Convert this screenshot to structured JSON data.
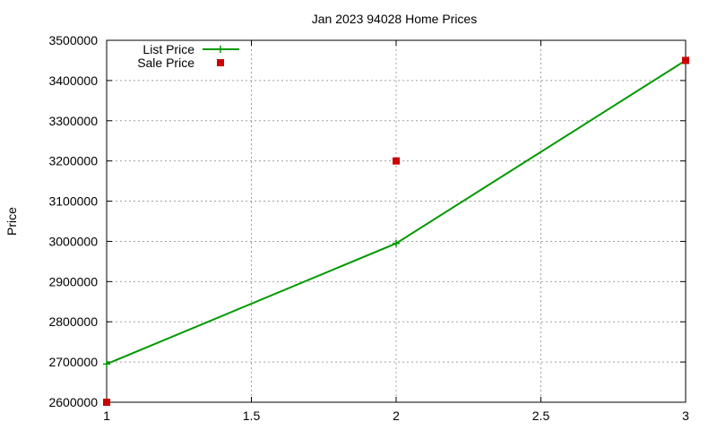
{
  "chart_data": {
    "type": "line",
    "title": "Jan 2023 94028 Home Prices",
    "xlabel": "",
    "ylabel": "Price",
    "xlim": [
      1,
      3
    ],
    "ylim": [
      2600000,
      3500000
    ],
    "x_ticks": [
      "1",
      "1.5",
      "2",
      "2.5",
      "3"
    ],
    "y_ticks": [
      "2600000",
      "2700000",
      "2800000",
      "2900000",
      "3000000",
      "3100000",
      "3200000",
      "3300000",
      "3400000",
      "3500000"
    ],
    "grid": true,
    "legend_position": "top-left",
    "series": [
      {
        "name": "List Price",
        "style": "line-with-plus-markers",
        "color": "#009900",
        "x": [
          1,
          2,
          3
        ],
        "y": [
          2695000,
          2995000,
          3450000
        ]
      },
      {
        "name": "Sale Price",
        "style": "square-markers",
        "color": "#cc0000",
        "x": [
          1,
          2,
          3
        ],
        "y": [
          2600000,
          3200000,
          3450000
        ]
      }
    ]
  }
}
